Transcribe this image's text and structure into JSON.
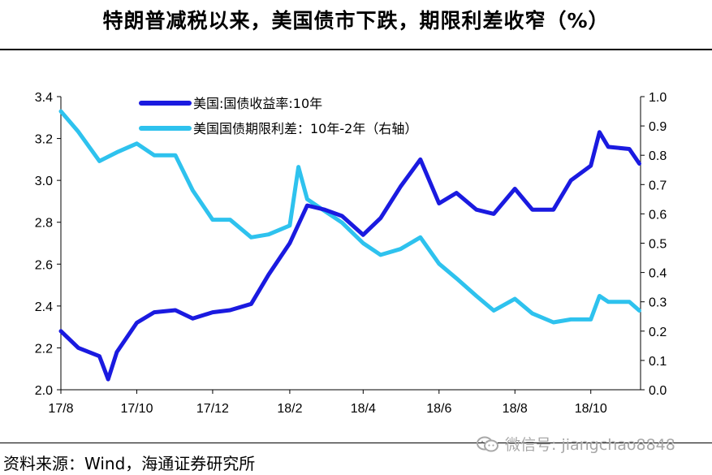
{
  "title": "特朗普减税以来，美国债市下跌，期限利差收窄（%）",
  "source": "资料来源：Wind，海通证券研究所",
  "watermark": "微信号: jiangchao8848",
  "chart_data": {
    "type": "line",
    "x_ticks": [
      "17/8",
      "17/10",
      "17/12",
      "18/2",
      "18/4",
      "18/6",
      "18/8",
      "18/10"
    ],
    "y_left": {
      "ticks": [
        "2.0",
        "2.2",
        "2.4",
        "2.6",
        "2.8",
        "3.0",
        "3.2",
        "3.4"
      ],
      "ylim": [
        2.0,
        3.4
      ]
    },
    "y_right": {
      "ticks": [
        "0.0",
        "0.1",
        "0.2",
        "0.3",
        "0.4",
        "0.5",
        "0.6",
        "0.7",
        "0.8",
        "0.9",
        "1.0"
      ],
      "ylim": [
        0.0,
        1.0
      ]
    },
    "legend_placement": "top-center",
    "series": [
      {
        "name": "美国:国债收益率:10年",
        "axis": "left",
        "color": "#1a1ae0",
        "x": [
          "2017-08-01",
          "2017-08-15",
          "2017-09-01",
          "2017-09-08",
          "2017-09-15",
          "2017-10-01",
          "2017-10-15",
          "2017-11-01",
          "2017-11-15",
          "2017-12-01",
          "2017-12-15",
          "2018-01-01",
          "2018-01-15",
          "2018-02-01",
          "2018-02-15",
          "2018-03-01",
          "2018-03-15",
          "2018-04-01",
          "2018-04-15",
          "2018-05-01",
          "2018-05-17",
          "2018-06-01",
          "2018-06-15",
          "2018-07-01",
          "2018-07-15",
          "2018-08-01",
          "2018-08-15",
          "2018-09-01",
          "2018-09-15",
          "2018-10-01",
          "2018-10-08",
          "2018-10-15",
          "2018-11-01",
          "2018-11-09"
        ],
        "values": [
          2.28,
          2.2,
          2.16,
          2.05,
          2.18,
          2.32,
          2.37,
          2.38,
          2.34,
          2.37,
          2.38,
          2.41,
          2.55,
          2.7,
          2.88,
          2.86,
          2.83,
          2.74,
          2.82,
          2.97,
          3.1,
          2.89,
          2.94,
          2.86,
          2.84,
          2.96,
          2.86,
          2.86,
          3.0,
          3.07,
          3.23,
          3.16,
          3.15,
          3.08
        ]
      },
      {
        "name": "美国国债期限利差：10年-2年（右轴）",
        "axis": "right",
        "color": "#2ec2ee",
        "x": [
          "2017-08-01",
          "2017-08-15",
          "2017-09-01",
          "2017-09-15",
          "2017-10-01",
          "2017-10-15",
          "2017-11-01",
          "2017-11-15",
          "2017-12-01",
          "2017-12-15",
          "2018-01-01",
          "2018-01-15",
          "2018-02-01",
          "2018-02-08",
          "2018-02-15",
          "2018-03-01",
          "2018-03-15",
          "2018-04-01",
          "2018-04-15",
          "2018-05-01",
          "2018-05-17",
          "2018-06-01",
          "2018-06-15",
          "2018-07-01",
          "2018-07-15",
          "2018-08-01",
          "2018-08-15",
          "2018-09-01",
          "2018-09-15",
          "2018-10-01",
          "2018-10-08",
          "2018-10-15",
          "2018-11-01",
          "2018-11-09"
        ],
        "values": [
          0.95,
          0.88,
          0.78,
          0.81,
          0.84,
          0.8,
          0.8,
          0.68,
          0.58,
          0.58,
          0.52,
          0.53,
          0.56,
          0.76,
          0.65,
          0.61,
          0.57,
          0.5,
          0.46,
          0.48,
          0.52,
          0.43,
          0.38,
          0.32,
          0.27,
          0.31,
          0.26,
          0.23,
          0.24,
          0.24,
          0.32,
          0.3,
          0.3,
          0.27
        ]
      }
    ]
  }
}
